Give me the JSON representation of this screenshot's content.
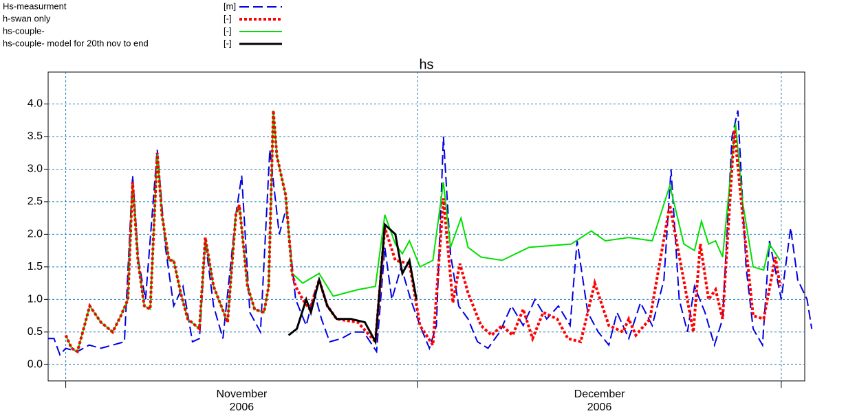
{
  "chart_data": {
    "type": "line",
    "title": "hs",
    "xlim": [
      -1.5,
      63
    ],
    "ylim": [
      -0.25,
      4.49
    ],
    "xgrid": [
      0,
      30,
      61
    ],
    "xticks": [
      {
        "value": 15,
        "label": "November\n2006"
      },
      {
        "value": 45.5,
        "label": "December\n2006"
      }
    ],
    "yticks": [
      {
        "value": 0,
        "label": "0.0"
      },
      {
        "value": 0.5,
        "label": "0.5"
      },
      {
        "value": 1,
        "label": "1.0"
      },
      {
        "value": 1.5,
        "label": "1.5"
      },
      {
        "value": 2,
        "label": "2.0"
      },
      {
        "value": 2.5,
        "label": "2.5"
      },
      {
        "value": 3,
        "label": "3.0"
      },
      {
        "value": 3.5,
        "label": "3.5"
      },
      {
        "value": 4,
        "label": "4.0"
      }
    ],
    "grid": true,
    "series": [
      {
        "name": "Hs-measurment",
        "unit": "[m]",
        "color": "#0000e0",
        "dash": "14 6",
        "width": 2,
        "x": [
          -1.5,
          -1,
          -0.5,
          0,
          1,
          2,
          3,
          4,
          5,
          5.7,
          6.2,
          6.8,
          7.8,
          8.5,
          9.2,
          10,
          10.8,
          11.4,
          11.9,
          12.6,
          13.4,
          14.5,
          15,
          15.7,
          16.6,
          17.4,
          18.2,
          18.8,
          19.6,
          20.5,
          21.2,
          21.8,
          22.5,
          23.5,
          24.5,
          25.4,
          26.5,
          27.2,
          27.8,
          28.6,
          29.4,
          30.2,
          31,
          31.6,
          32.2,
          32.8,
          33.5,
          34.3,
          35.1,
          36,
          37,
          38,
          39,
          40,
          41,
          42,
          43,
          43.6,
          44.5,
          45.4,
          46.3,
          47,
          48,
          49,
          50,
          51,
          51.6,
          52.3,
          53,
          53.6,
          54.5,
          55.3,
          56,
          56.8,
          57.3,
          58,
          58.6,
          59.4,
          60,
          61,
          61.8,
          62.4,
          63.2,
          63.6
        ],
        "values": [
          0.4,
          0.4,
          0.15,
          0.25,
          0.2,
          0.3,
          0.25,
          0.3,
          0.35,
          2.9,
          1.6,
          1.0,
          3.3,
          1.8,
          0.9,
          1.2,
          0.35,
          0.4,
          1.9,
          0.9,
          0.4,
          2.3,
          2.9,
          0.8,
          0.5,
          3.3,
          2.0,
          2.4,
          1.0,
          0.6,
          1.1,
          0.7,
          0.35,
          0.4,
          0.5,
          0.5,
          0.2,
          1.8,
          1.0,
          1.5,
          1.0,
          0.6,
          0.25,
          0.6,
          3.5,
          1.7,
          0.9,
          0.7,
          0.35,
          0.25,
          0.5,
          0.9,
          0.6,
          1.0,
          0.7,
          0.9,
          0.6,
          1.9,
          0.8,
          0.5,
          0.3,
          0.8,
          0.4,
          0.95,
          0.6,
          1.3,
          3.0,
          1.0,
          0.5,
          1.2,
          0.8,
          0.3,
          0.7,
          3.5,
          3.9,
          1.5,
          0.55,
          0.3,
          1.9,
          1.0,
          2.1,
          1.3,
          1.0,
          0.55
        ]
      },
      {
        "name": "h-swan only",
        "unit": "[-]",
        "color": "#ff0000",
        "dash": "4 3",
        "width": 4,
        "x": [
          0,
          0.5,
          1,
          2.05,
          3,
          4,
          4.7,
          5.3,
          5.7,
          6.15,
          6.7,
          7.2,
          7.8,
          8.2,
          8.8,
          9.2,
          9.8,
          10.4,
          11.4,
          11.9,
          12.6,
          13.8,
          14.5,
          14.8,
          15.5,
          16.1,
          16.9,
          17.3,
          17.7,
          18,
          18.75,
          19.3,
          19.6,
          20.2,
          20.8,
          21.6,
          22.3,
          23.1,
          24.9,
          26.4,
          27.2,
          28.1,
          29.3,
          30.2,
          31.3,
          32.2,
          33,
          33.6,
          34.3,
          35.4,
          36.3,
          37.2,
          38.1,
          39,
          39.8,
          40.7,
          41.9,
          42.8,
          43.9,
          45.1,
          46.3,
          47.5,
          48,
          48.6,
          49.8,
          51.5,
          53.5,
          54.1,
          54.8,
          55.4,
          56,
          57,
          57.7,
          58.6,
          59.5,
          60.5,
          60.9
        ],
        "values": [
          0.45,
          0.25,
          0.2,
          0.9,
          0.65,
          0.5,
          0.75,
          1.0,
          2.8,
          1.6,
          0.9,
          0.85,
          3.25,
          2.3,
          1.6,
          1.6,
          1.1,
          0.7,
          0.55,
          1.95,
          1.2,
          0.65,
          2.3,
          2.45,
          1.2,
          0.85,
          0.8,
          1.2,
          3.9,
          3.2,
          2.6,
          1.4,
          1.2,
          1.0,
          0.85,
          1.3,
          0.9,
          0.7,
          0.65,
          0.35,
          2.1,
          1.6,
          1.55,
          0.6,
          0.3,
          2.55,
          0.95,
          1.55,
          1.1,
          0.6,
          0.45,
          0.6,
          0.45,
          0.85,
          0.4,
          0.8,
          0.7,
          0.4,
          0.35,
          1.25,
          0.6,
          0.5,
          0.7,
          0.45,
          0.7,
          2.45,
          0.5,
          1.85,
          1.0,
          1.15,
          0.7,
          3.6,
          2.3,
          0.75,
          0.7,
          1.65,
          1.2
        ]
      },
      {
        "name": "hs-couple-",
        "unit": "[-]",
        "color": "#00e000",
        "dash": "",
        "width": 2,
        "x": [
          0,
          0.5,
          1,
          2.05,
          3,
          4,
          4.7,
          5.3,
          5.7,
          6.15,
          6.7,
          7.2,
          7.8,
          8.2,
          8.8,
          9.2,
          9.8,
          10.4,
          11.4,
          11.9,
          12.6,
          13.8,
          14.5,
          14.8,
          15.5,
          16.1,
          16.9,
          17.3,
          17.7,
          18,
          18.75,
          19.3,
          20.2,
          21.6,
          22.8,
          24.9,
          26.4,
          27.2,
          28.1,
          28.7,
          29.3,
          30.2,
          31.3,
          32.2,
          32.8,
          33.7,
          34.3,
          35.4,
          37.2,
          39.5,
          43.1,
          44.8,
          46,
          48,
          50,
          51.5,
          52.7,
          53.6,
          54.2,
          54.8,
          55.4,
          56,
          57.1,
          57.7,
          58.6,
          59.5,
          60,
          60.9
        ],
        "values": [
          0.45,
          0.25,
          0.2,
          0.9,
          0.65,
          0.5,
          0.75,
          1.0,
          2.8,
          1.6,
          0.9,
          0.85,
          3.25,
          2.3,
          1.6,
          1.6,
          1.1,
          0.7,
          0.55,
          1.95,
          1.2,
          0.65,
          2.3,
          2.45,
          1.2,
          0.85,
          0.8,
          1.2,
          3.9,
          3.2,
          2.6,
          1.4,
          1.25,
          1.4,
          1.05,
          1.15,
          1.2,
          2.3,
          1.85,
          1.7,
          1.9,
          1.5,
          1.6,
          2.8,
          1.8,
          2.25,
          1.8,
          1.65,
          1.6,
          1.8,
          1.85,
          2.05,
          1.9,
          1.95,
          1.9,
          2.75,
          1.85,
          1.75,
          2.2,
          1.85,
          1.9,
          1.65,
          3.7,
          2.5,
          1.5,
          1.45,
          1.85,
          1.6
        ]
      },
      {
        "name": "hs-couple- model for 20th nov to end",
        "unit": "[-]",
        "color": "#000000",
        "dash": "",
        "width": 3,
        "x": [
          19,
          19.7,
          20.5,
          20.9,
          21.6,
          22.3,
          23.1,
          24.3,
          25.5,
          26.4,
          27.2,
          28.1,
          28.7,
          29.3,
          29.9
        ],
        "values": [
          0.45,
          0.55,
          1.0,
          0.8,
          1.3,
          0.9,
          0.7,
          0.7,
          0.65,
          0.35,
          2.15,
          2.0,
          1.4,
          1.6,
          1.0
        ]
      }
    ]
  }
}
